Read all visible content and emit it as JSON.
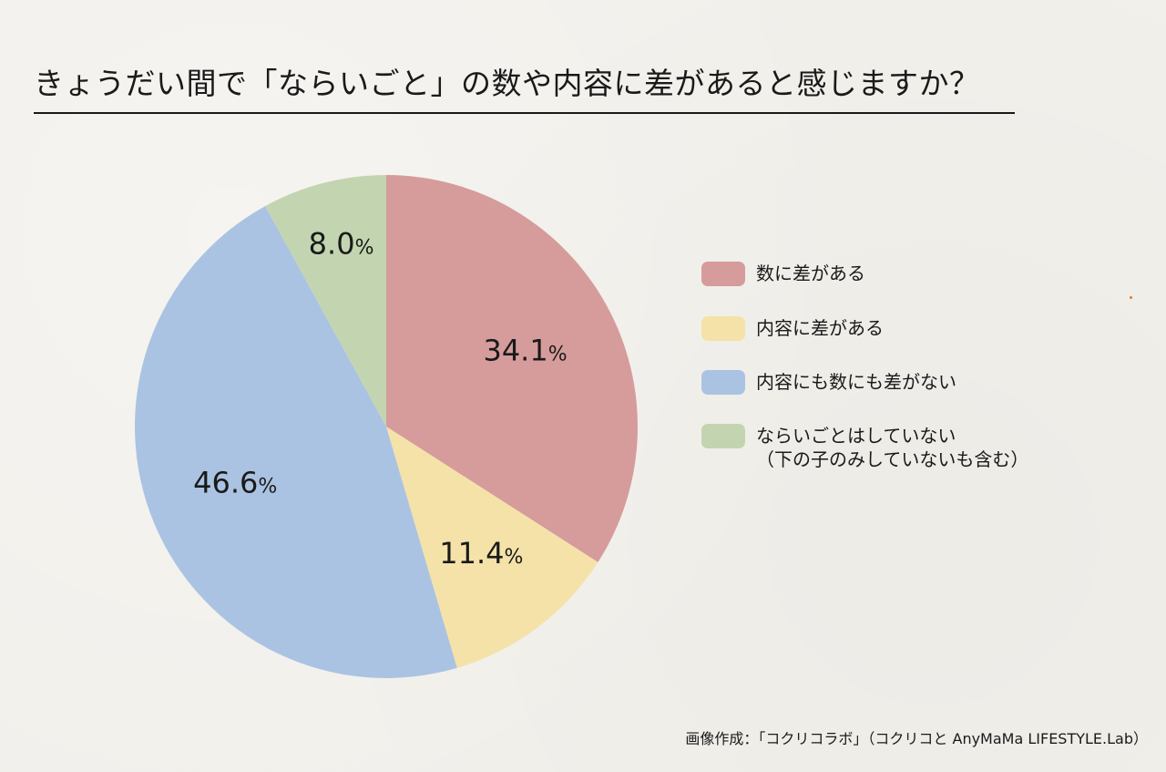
{
  "title": "きょうだい間で「ならいごと」の数や内容に差があると感じますか？",
  "chart_data": {
    "type": "pie",
    "title": "きょうだい間で「ならいごと」の数や内容に差があると感じますか？",
    "unit": "%",
    "slices": [
      {
        "label": "数に差がある",
        "value": 34.1,
        "value_text": "34.1",
        "color": "#d59c9b"
      },
      {
        "label": "内容に差がある",
        "value": 11.4,
        "value_text": "11.4",
        "color": "#f5e2a9"
      },
      {
        "label": "内容にも数にも差がない",
        "value": 46.6,
        "value_text": "46.6",
        "color": "#abc3e2"
      },
      {
        "label": "ならいごとはしていない",
        "sublabel": "（下の子のみしていないも含む）",
        "value": 8.0,
        "value_text": "8.0",
        "color": "#c3d5b0"
      }
    ],
    "start_angle": "12 o'clock",
    "direction": "clockwise",
    "legend_position": "right"
  },
  "credit": "画像作成：「コクリコラボ」（コクリコと AnyMaMa LIFESTYLE.Lab）"
}
